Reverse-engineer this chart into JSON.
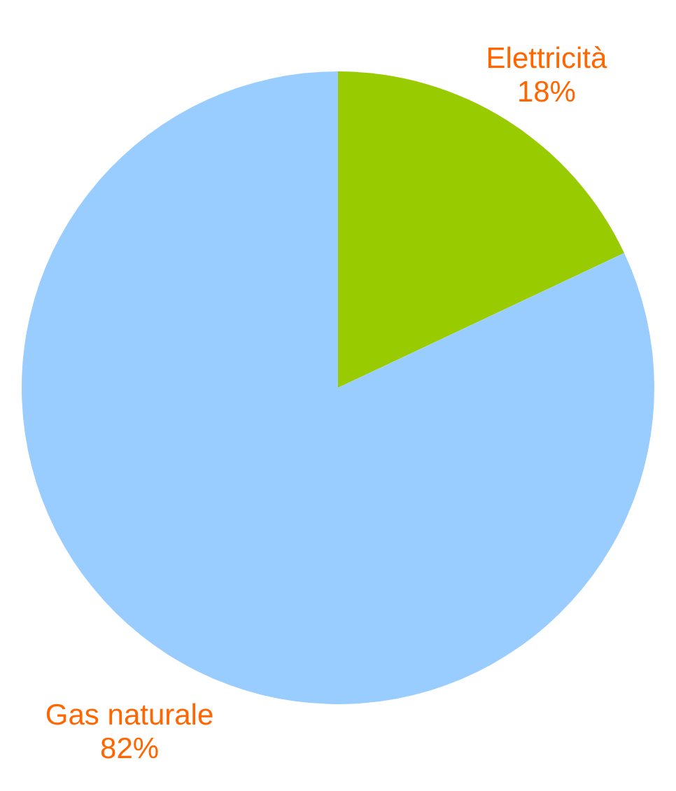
{
  "chart_data": {
    "type": "pie",
    "categories": [
      "Elettricità",
      "Gas naturale"
    ],
    "values": [
      18,
      82
    ],
    "colors": [
      "#99cc00",
      "#99ccff"
    ],
    "value_labels": [
      "18%",
      "82%"
    ]
  }
}
